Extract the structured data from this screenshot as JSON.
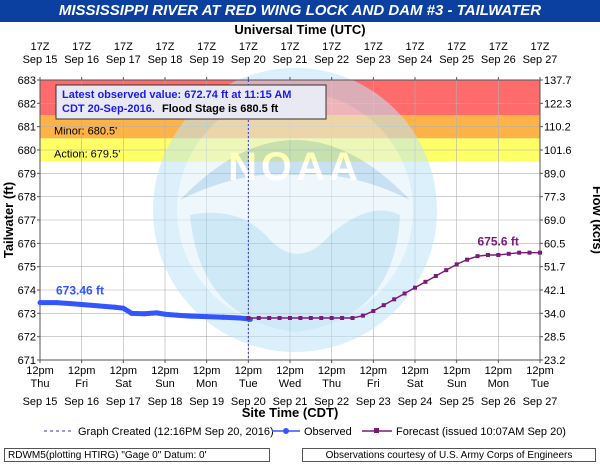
{
  "title": "MISSISSIPPI RIVER AT RED WING LOCK AND DAM #3 - TAILWATER",
  "top_axis_title": "Universal Time (UTC)",
  "bottom_axis_title": "Site Time (CDT)",
  "watermark": "NOAA",
  "info_box": {
    "line1": "Latest observed value: 672.74 ft at 11:15 AM",
    "line2_a": "CDT 20-Sep-2016.",
    "line2_b": "Flood Stage is 680.5 ft"
  },
  "footer": {
    "left": "RDWM5(plotting HTIRG) \"Gage 0\" Datum: 0'",
    "right": "Observations courtesy of U.S. Army Corps of Engineers"
  },
  "chart_data": {
    "type": "line",
    "title": "MISSISSIPPI RIVER AT RED WING LOCK AND DAM #3 - TAILWATER",
    "ylabel": "Tailwater (ft)",
    "y2label": "Flow (kcfs)",
    "xlabel": "Site Time (CDT)",
    "ylim": [
      671,
      683
    ],
    "y_ticks": [
      "671",
      "672",
      "673",
      "674",
      "675",
      "676",
      "677",
      "678",
      "679",
      "680",
      "681",
      "682",
      "683"
    ],
    "y2_ticks": [
      "23.2",
      "28.5",
      "34.0",
      "42.1",
      "51.7",
      "60.5",
      "69.0",
      "77.3",
      "89.0",
      "101.6",
      "110.2",
      "122.3",
      "137.7"
    ],
    "x_range_days": [
      0,
      12
    ],
    "x_bottom_ticks": [
      {
        "time": "12pm",
        "day": "Thu",
        "date": "Sep 15"
      },
      {
        "time": "12pm",
        "day": "Fri",
        "date": "Sep 16"
      },
      {
        "time": "12pm",
        "day": "Sat",
        "date": "Sep 17"
      },
      {
        "time": "12pm",
        "day": "Sun",
        "date": "Sep 18"
      },
      {
        "time": "12pm",
        "day": "Mon",
        "date": "Sep 19"
      },
      {
        "time": "12pm",
        "day": "Tue",
        "date": "Sep 20"
      },
      {
        "time": "12pm",
        "day": "Wed",
        "date": "Sep 21"
      },
      {
        "time": "12pm",
        "day": "Thu",
        "date": "Sep 22"
      },
      {
        "time": "12pm",
        "day": "Fri",
        "date": "Sep 23"
      },
      {
        "time": "12pm",
        "day": "Sat",
        "date": "Sep 24"
      },
      {
        "time": "12pm",
        "day": "Sun",
        "date": "Sep 25"
      },
      {
        "time": "12pm",
        "day": "Mon",
        "date": "Sep 26"
      },
      {
        "time": "12pm",
        "day": "Tue",
        "date": "Sep 27"
      }
    ],
    "x_top_ticks": [
      {
        "time": "17Z",
        "date": "Sep 15"
      },
      {
        "time": "17Z",
        "date": "Sep 16"
      },
      {
        "time": "17Z",
        "date": "Sep 17"
      },
      {
        "time": "17Z",
        "date": "Sep 18"
      },
      {
        "time": "17Z",
        "date": "Sep 19"
      },
      {
        "time": "17Z",
        "date": "Sep 20"
      },
      {
        "time": "17Z",
        "date": "Sep 21"
      },
      {
        "time": "17Z",
        "date": "Sep 22"
      },
      {
        "time": "17Z",
        "date": "Sep 23"
      },
      {
        "time": "17Z",
        "date": "Sep 24"
      },
      {
        "time": "17Z",
        "date": "Sep 25"
      },
      {
        "time": "17Z",
        "date": "Sep 26"
      },
      {
        "time": "17Z",
        "date": "Sep 27"
      }
    ],
    "flood_bands": [
      {
        "name": "Action",
        "label": "Action: 679.5'",
        "from": 679.5,
        "to": 680.5,
        "color": "#ffff66"
      },
      {
        "name": "Minor",
        "label": "Minor: 680.5'",
        "from": 680.5,
        "to": 681.5,
        "color": "#ffb347"
      },
      {
        "name": "Moderate",
        "label": "",
        "from": 681.5,
        "to": 683,
        "color": "#ff6a6a"
      }
    ],
    "graph_created_x": 5.0,
    "observed": {
      "name": "Observed",
      "color": "#3355ff",
      "label": "673.46 ft",
      "points": [
        [
          0.0,
          673.46
        ],
        [
          0.4,
          673.46
        ],
        [
          0.7,
          673.42
        ],
        [
          1.0,
          673.38
        ],
        [
          1.4,
          673.32
        ],
        [
          1.8,
          673.26
        ],
        [
          2.0,
          673.22
        ],
        [
          2.2,
          673.0
        ],
        [
          2.5,
          672.98
        ],
        [
          2.8,
          673.02
        ],
        [
          3.0,
          672.96
        ],
        [
          3.3,
          672.92
        ],
        [
          3.6,
          672.88
        ],
        [
          4.0,
          672.86
        ],
        [
          4.4,
          672.83
        ],
        [
          4.8,
          672.8
        ],
        [
          5.0,
          672.76
        ],
        [
          5.05,
          672.74
        ]
      ]
    },
    "forecast": {
      "name": "Forecast",
      "color": "#7a1a7a",
      "label": "675.6 ft",
      "points": [
        [
          5.0,
          672.8
        ],
        [
          5.25,
          672.8
        ],
        [
          5.5,
          672.8
        ],
        [
          5.75,
          672.8
        ],
        [
          6.0,
          672.8
        ],
        [
          6.25,
          672.8
        ],
        [
          6.5,
          672.8
        ],
        [
          6.75,
          672.8
        ],
        [
          7.0,
          672.8
        ],
        [
          7.25,
          672.8
        ],
        [
          7.5,
          672.8
        ],
        [
          7.75,
          672.9
        ],
        [
          8.0,
          673.1
        ],
        [
          8.25,
          673.35
        ],
        [
          8.5,
          673.6
        ],
        [
          8.75,
          673.85
        ],
        [
          9.0,
          674.1
        ],
        [
          9.25,
          674.35
        ],
        [
          9.5,
          674.6
        ],
        [
          9.75,
          674.85
        ],
        [
          10.0,
          675.1
        ],
        [
          10.25,
          675.3
        ],
        [
          10.5,
          675.45
        ],
        [
          10.75,
          675.5
        ],
        [
          11.0,
          675.5
        ],
        [
          11.25,
          675.55
        ],
        [
          11.5,
          675.6
        ],
        [
          11.75,
          675.6
        ],
        [
          12.0,
          675.6
        ]
      ]
    },
    "legend": [
      {
        "kind": "created",
        "text": "Graph Created (12:16PM Sep 20, 2016)"
      },
      {
        "kind": "observed",
        "text": "Observed"
      },
      {
        "kind": "forecast",
        "text": "Forecast (issued 10:07AM Sep 20)"
      }
    ]
  }
}
